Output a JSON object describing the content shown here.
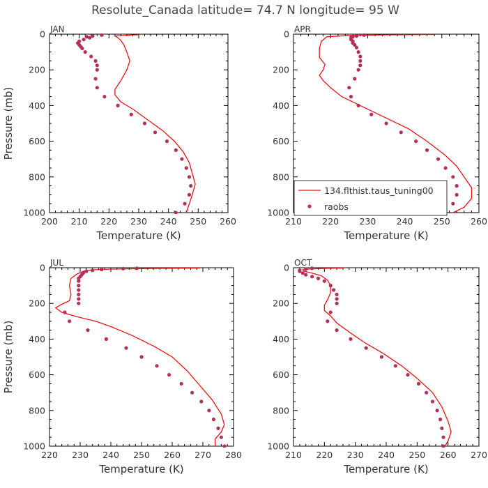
{
  "figure": {
    "title": "Resolute_Canada   latitude= 74.7 N longitude= 95 W"
  },
  "colors": {
    "model_line": "#ee1111",
    "raobs_marker": "#b3305c",
    "axis": "#000000"
  },
  "legend": {
    "model_label": "134.flthist.taus_tuning00",
    "obs_label": "raobs",
    "location": "bottom-left of APR panel"
  },
  "chart_data": [
    {
      "type": "line",
      "panel": "JAN",
      "title": "JAN",
      "xlabel": "Temperature (K)",
      "ylabel": "Pressure (mb)",
      "xlim": [
        200,
        260
      ],
      "ylim": [
        1000,
        0
      ],
      "xticks": [
        200,
        210,
        220,
        230,
        240,
        250,
        260
      ],
      "yticks": [
        0,
        200,
        400,
        600,
        800,
        1000
      ],
      "series": [
        {
          "name": "134.flthist.taus_tuning00",
          "kind": "line",
          "points": [
            [
              230,
              3
            ],
            [
              226,
              6
            ],
            [
              222,
              10
            ],
            [
              223,
              20
            ],
            [
              224,
              35
            ],
            [
              225,
              60
            ],
            [
              226,
              100
            ],
            [
              227,
              150
            ],
            [
              226,
              200
            ],
            [
              224,
              260
            ],
            [
              222,
              310
            ],
            [
              222,
              340
            ],
            [
              224,
              380
            ],
            [
              228,
              420
            ],
            [
              233,
              480
            ],
            [
              238,
              540
            ],
            [
              242,
              600
            ],
            [
              245,
              660
            ],
            [
              247,
              720
            ],
            [
              248,
              780
            ],
            [
              249,
              840
            ],
            [
              248,
              900
            ],
            [
              247,
              950
            ],
            [
              246,
              1000
            ]
          ]
        },
        {
          "name": "raobs",
          "kind": "scatter",
          "points": [
            [
              217.5,
              5
            ],
            [
              214.5,
              10
            ],
            [
              212.5,
              15
            ],
            [
              213.5,
              20
            ],
            [
              211.5,
              30
            ],
            [
              210,
              40
            ],
            [
              209.5,
              50
            ],
            [
              210,
              60
            ],
            [
              210.5,
              70
            ],
            [
              211,
              80
            ],
            [
              212,
              100
            ],
            [
              214,
              125
            ],
            [
              215.5,
              150
            ],
            [
              216,
              175
            ],
            [
              216,
              200
            ],
            [
              215.5,
              250
            ],
            [
              216,
              300
            ],
            [
              218.5,
              350
            ],
            [
              223,
              400
            ],
            [
              227.5,
              450
            ],
            [
              232,
              500
            ],
            [
              235.5,
              550
            ],
            [
              239.5,
              600
            ],
            [
              242.5,
              650
            ],
            [
              244.5,
              700
            ],
            [
              246,
              750
            ],
            [
              247,
              800
            ],
            [
              247.5,
              850
            ],
            [
              247,
              900
            ],
            [
              245.5,
              950
            ],
            [
              242.5,
              1000
            ]
          ]
        }
      ]
    },
    {
      "type": "line",
      "panel": "APR",
      "title": "APR",
      "xlabel": "Temperature (K)",
      "ylabel": "",
      "xlim": [
        210,
        260
      ],
      "ylim": [
        1000,
        0
      ],
      "xticks": [
        210,
        220,
        230,
        240,
        250,
        260
      ],
      "yticks": [
        0,
        200,
        400,
        600,
        800,
        1000
      ],
      "series": [
        {
          "name": "134.flthist.taus_tuning00",
          "kind": "line",
          "points": [
            [
              248,
              2
            ],
            [
              235,
              4
            ],
            [
              225,
              7
            ],
            [
              219,
              15
            ],
            [
              217.5,
              40
            ],
            [
              217,
              80
            ],
            [
              217,
              130
            ],
            [
              218.5,
              170
            ],
            [
              218,
              200
            ],
            [
              217,
              230
            ],
            [
              218,
              260
            ],
            [
              220,
              300
            ],
            [
              223,
              350
            ],
            [
              228,
              400
            ],
            [
              234,
              460
            ],
            [
              241,
              530
            ],
            [
              246,
              600
            ],
            [
              251,
              680
            ],
            [
              254,
              740
            ],
            [
              256,
              800
            ],
            [
              258,
              860
            ],
            [
              258,
              920
            ],
            [
              256,
              970
            ],
            [
              253,
              1000
            ]
          ]
        },
        {
          "name": "raobs",
          "kind": "scatter",
          "points": [
            [
              229,
              5
            ],
            [
              227,
              10
            ],
            [
              226,
              15
            ],
            [
              225.5,
              20
            ],
            [
              225.5,
              30
            ],
            [
              226,
              40
            ],
            [
              226,
              50
            ],
            [
              226.5,
              60
            ],
            [
              227,
              75
            ],
            [
              227.5,
              100
            ],
            [
              228,
              125
            ],
            [
              228,
              150
            ],
            [
              228,
              175
            ],
            [
              227.5,
              200
            ],
            [
              226.5,
              250
            ],
            [
              225,
              300
            ],
            [
              225.5,
              350
            ],
            [
              227.5,
              400
            ],
            [
              231,
              450
            ],
            [
              235,
              500
            ],
            [
              239,
              550
            ],
            [
              243,
              600
            ],
            [
              246,
              650
            ],
            [
              249,
              700
            ],
            [
              251,
              750
            ],
            [
              253,
              800
            ],
            [
              254,
              850
            ],
            [
              254,
              900
            ],
            [
              253,
              950
            ],
            [
              251,
              1000
            ]
          ]
        }
      ]
    },
    {
      "type": "line",
      "panel": "JUL",
      "title": "JUL",
      "xlabel": "Temperature (K)",
      "ylabel": "Pressure (mb)",
      "xlim": [
        220,
        280
      ],
      "ylim": [
        1000,
        0
      ],
      "xticks": [
        220,
        230,
        240,
        250,
        260,
        270,
        280
      ],
      "yticks": [
        0,
        200,
        400,
        600,
        800,
        1000
      ],
      "series": [
        {
          "name": "134.flthist.taus_tuning00",
          "kind": "line",
          "points": [
            [
              269,
              2
            ],
            [
              255,
              4
            ],
            [
              240,
              8
            ],
            [
              234,
              12
            ],
            [
              231,
              20
            ],
            [
              229,
              35
            ],
            [
              227,
              60
            ],
            [
              226.5,
              100
            ],
            [
              227,
              150
            ],
            [
              226.5,
              185
            ],
            [
              224,
              205
            ],
            [
              222,
              225
            ],
            [
              224,
              250
            ],
            [
              229,
              275
            ],
            [
              235,
              300
            ],
            [
              240,
              330
            ],
            [
              247,
              380
            ],
            [
              254,
              440
            ],
            [
              260,
              500
            ],
            [
              265,
              580
            ],
            [
              269,
              660
            ],
            [
              273,
              740
            ],
            [
              276,
              820
            ],
            [
              277,
              880
            ],
            [
              276,
              920
            ],
            [
              274,
              960
            ],
            [
              274,
              1000
            ]
          ]
        },
        {
          "name": "raobs",
          "kind": "scatter",
          "points": [
            [
              248.5,
              3
            ],
            [
              244,
              5
            ],
            [
              237,
              10
            ],
            [
              234,
              15
            ],
            [
              232,
              20
            ],
            [
              231,
              30
            ],
            [
              230.5,
              40
            ],
            [
              230,
              50
            ],
            [
              229.5,
              60
            ],
            [
              229.5,
              75
            ],
            [
              229.5,
              100
            ],
            [
              229.5,
              125
            ],
            [
              229.5,
              150
            ],
            [
              229.5,
              175
            ],
            [
              229.5,
              200
            ],
            [
              225,
              250
            ],
            [
              226.5,
              300
            ],
            [
              232.5,
              350
            ],
            [
              238.5,
              400
            ],
            [
              245,
              450
            ],
            [
              250,
              500
            ],
            [
              255,
              550
            ],
            [
              259,
              600
            ],
            [
              263,
              650
            ],
            [
              266.5,
              700
            ],
            [
              269.5,
              750
            ],
            [
              272,
              800
            ],
            [
              273.5,
              850
            ],
            [
              275,
              900
            ],
            [
              276,
              950
            ],
            [
              277,
              1000
            ]
          ]
        }
      ]
    },
    {
      "type": "line",
      "panel": "OCT",
      "title": "OCT",
      "xlabel": "Temperature (K)",
      "ylabel": "",
      "xlim": [
        210,
        270
      ],
      "ylim": [
        1000,
        0
      ],
      "xticks": [
        210,
        220,
        230,
        240,
        250,
        260,
        270
      ],
      "yticks": [
        0,
        200,
        400,
        600,
        800,
        1000
      ],
      "series": [
        {
          "name": "134.flthist.taus_tuning00",
          "kind": "line",
          "points": [
            [
              226,
              2
            ],
            [
              220,
              4
            ],
            [
              215,
              7
            ],
            [
              213,
              12
            ],
            [
              213.5,
              20
            ],
            [
              216,
              30
            ],
            [
              219,
              45
            ],
            [
              221,
              70
            ],
            [
              222,
              100
            ],
            [
              222,
              140
            ],
            [
              221,
              180
            ],
            [
              220,
              210
            ],
            [
              220,
              240
            ],
            [
              222,
              270
            ],
            [
              224,
              310
            ],
            [
              228,
              360
            ],
            [
              233,
              420
            ],
            [
              239,
              480
            ],
            [
              245,
              550
            ],
            [
              250,
              620
            ],
            [
              255,
              700
            ],
            [
              258,
              780
            ],
            [
              260,
              860
            ],
            [
              261,
              920
            ],
            [
              260,
              970
            ],
            [
              259,
              1000
            ]
          ]
        },
        {
          "name": "raobs",
          "kind": "scatter",
          "points": [
            [
              216,
              3
            ],
            [
              214,
              8
            ],
            [
              212,
              15
            ],
            [
              212,
              20
            ],
            [
              213,
              30
            ],
            [
              214,
              40
            ],
            [
              216,
              50
            ],
            [
              218,
              60
            ],
            [
              220,
              75
            ],
            [
              222,
              100
            ],
            [
              223,
              125
            ],
            [
              224,
              150
            ],
            [
              224,
              175
            ],
            [
              224,
              200
            ],
            [
              222,
              250
            ],
            [
              221,
              300
            ],
            [
              224,
              350
            ],
            [
              228.5,
              400
            ],
            [
              233.5,
              450
            ],
            [
              238.5,
              500
            ],
            [
              243,
              550
            ],
            [
              247,
              600
            ],
            [
              250.5,
              650
            ],
            [
              253,
              700
            ],
            [
              255,
              750
            ],
            [
              256.5,
              800
            ],
            [
              257.5,
              850
            ],
            [
              258,
              900
            ],
            [
              258.5,
              950
            ],
            [
              258.5,
              1000
            ]
          ]
        }
      ]
    }
  ]
}
